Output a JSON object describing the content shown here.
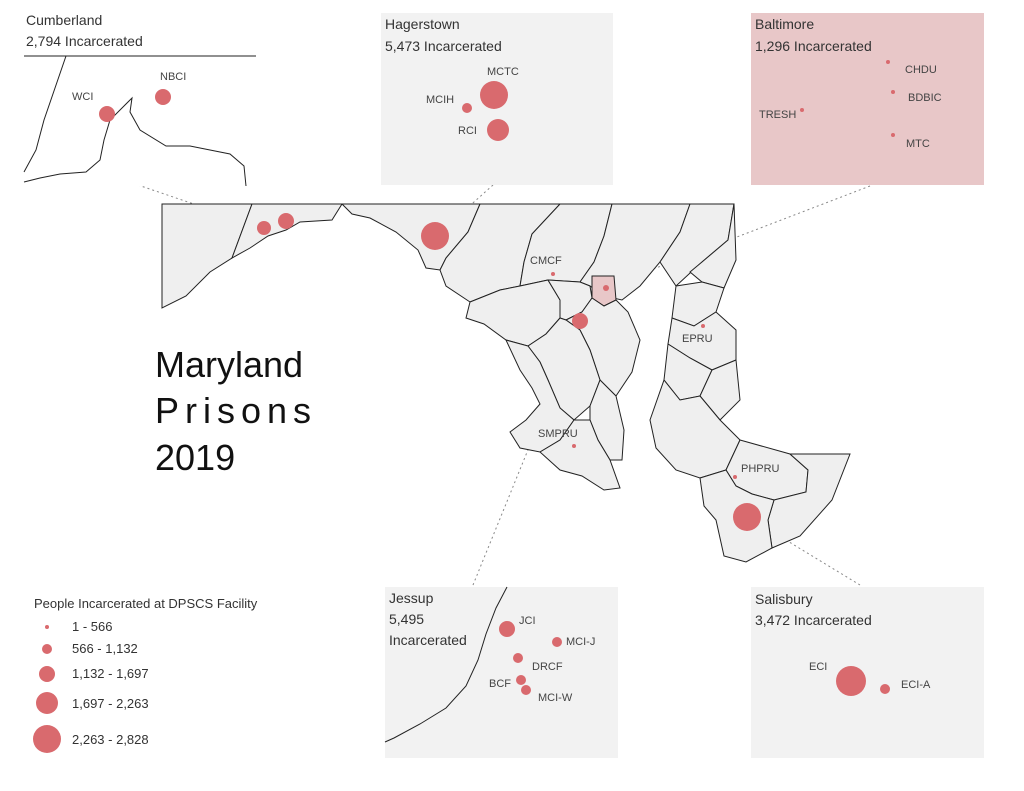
{
  "title": {
    "line1": "Maryland",
    "line2": "Prisons",
    "line3": "2019"
  },
  "insets": {
    "cumberland": {
      "name": "Cumberland",
      "count": "2,794 Incarcerated",
      "facilities": [
        "NBCI",
        "WCI"
      ]
    },
    "hagerstown": {
      "name": "Hagerstown",
      "count": "5,473 Incarcerated",
      "facilities": [
        "MCTC",
        "MCIH",
        "RCI"
      ]
    },
    "baltimore": {
      "name": "Baltimore",
      "count": "1,296 Incarcerated",
      "facilities": [
        "CHDU",
        "BDBIC",
        "TRESH",
        "MTC"
      ]
    },
    "jessup": {
      "name": "Jessup",
      "count_line1": "5,495",
      "count_line2": "Incarcerated",
      "facilities": [
        "JCI",
        "MCI-J",
        "DRCF",
        "BCF",
        "MCI-W"
      ]
    },
    "salisbury": {
      "name": "Salisbury",
      "count": "3,472 Incarcerated",
      "facilities": [
        "ECI",
        "ECI-A"
      ]
    }
  },
  "map_labels": {
    "cmcf": "CMCF",
    "epru": "EPRU",
    "smpru": "SMPRU",
    "phpru": "PHPRU"
  },
  "legend": {
    "title": "People Incarcerated at DPSCS Facility",
    "items": [
      "1 - 566",
      "566 - 1,132",
      "1,132 - 1,697",
      "1,697 - 2,263",
      "2,263 - 2,828"
    ]
  },
  "colors": {
    "dot": "#d96a6e",
    "baltimore_fill": "#e8c7c8",
    "inset_bg": "#f2f2f2",
    "county_fill": "#efefef"
  }
}
